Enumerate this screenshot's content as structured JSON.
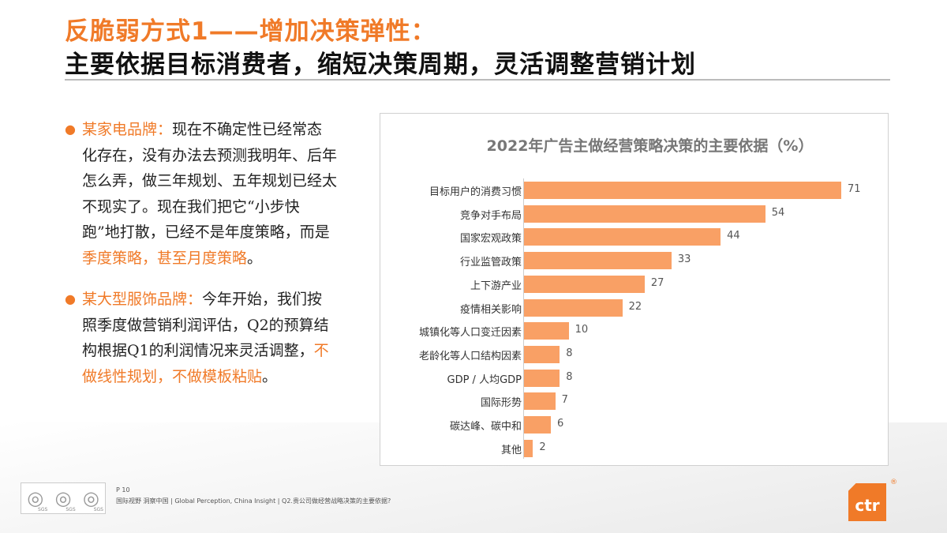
{
  "header": {
    "title_line1": "反脆弱方式1——增加决策弹性：",
    "title_line2": "主要依据目标消费者，缩短决策周期，灵活调整营销计划"
  },
  "quotes": [
    {
      "brand": "某家电品牌：",
      "text": "现在不确定性已经常态化存在，没有办法去预测我明年、后年怎么弄，做三年规划、五年规划已经太不现实了。现在我们把它“小步快跑”地打散，已经不是年度策略，而是",
      "highlight": "季度策略，甚至月度策略",
      "end": "。"
    },
    {
      "brand": "某大型服饰品牌：",
      "text": "今年开始，我们按照季度做营销利润评估，Q2的预算结构根据Q1的利润情况来灵活调整，",
      "highlight": "不做线性规划，不做模板粘贴",
      "end": "。"
    }
  ],
  "chart_data": {
    "type": "bar",
    "orientation": "horizontal",
    "title": "2022年广告主做经营策略决策的主要依据（%）",
    "bar_color": "#f9a065",
    "categories": [
      "目标用户的消费习惯",
      "竞争对手布局",
      "国家宏观政策",
      "行业监管政策",
      "上下游产业",
      "疫情相关影响",
      "城镇化等人口变迁因素",
      "老龄化等人口结构因素",
      "GDP / 人均GDP",
      "国际形势",
      "碳达峰、碳中和",
      "其他"
    ],
    "values": [
      71,
      54,
      44,
      33,
      27,
      22,
      10,
      8,
      8,
      7,
      6,
      2
    ]
  },
  "footer": {
    "page": "P 10",
    "text": "国际视野 洞察中国 |  Global Perception,  China Insight | Q2.贵公司做经营战略决策的主要依据?",
    "logo": "ctr",
    "sgs": "SGS"
  },
  "colors": {
    "accent": "#f07a28"
  }
}
